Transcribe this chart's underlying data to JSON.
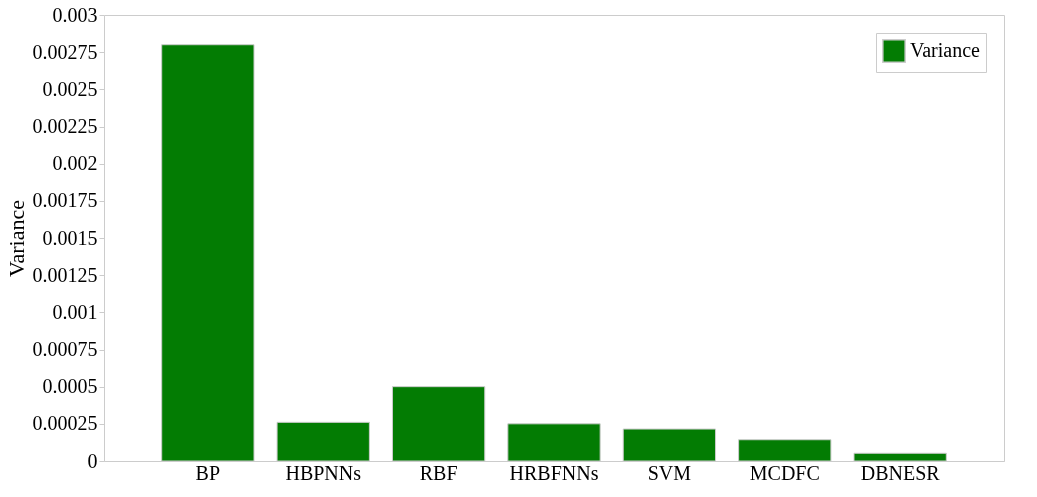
{
  "chart_data": {
    "type": "bar",
    "ylabel": "Variance",
    "categories": [
      "BP",
      "HBPNNs",
      "RBF",
      "HRBFNNs",
      "SVM",
      "MCDFC",
      "DBNESR"
    ],
    "series": [
      {
        "name": "Variance",
        "color": "#037c03",
        "values": [
          0.0028,
          0.00026,
          0.0005,
          0.00025,
          0.000215,
          0.000143,
          5.2e-05
        ]
      }
    ],
    "ylim": [
      0,
      0.003
    ],
    "yticks": [
      0,
      0.00025,
      0.0005,
      0.00075,
      0.001,
      0.00125,
      0.0015,
      0.00175,
      0.002,
      0.00225,
      0.0025,
      0.00275,
      0.003
    ],
    "legend": "top right",
    "grid": false
  }
}
